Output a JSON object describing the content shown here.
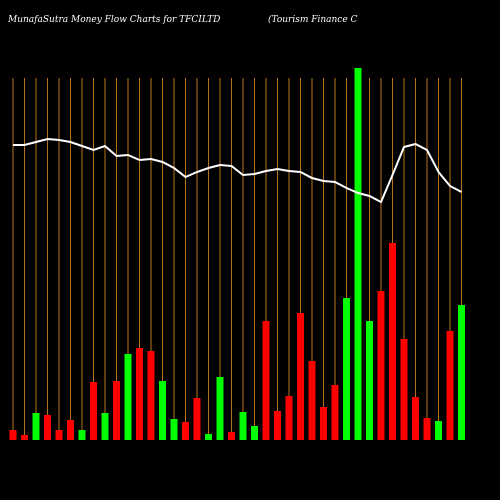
{
  "chart_data": {
    "type": "bar",
    "title": "MunafaSutra  Money Flow  Charts for TFCILTD",
    "subtitle": "(Tourism Finance   C",
    "categories": [
      null,
      null,
      null,
      null,
      null,
      null,
      null,
      null,
      null,
      null,
      null,
      null,
      null,
      null,
      null,
      null,
      null,
      null,
      null,
      null,
      null,
      null,
      null,
      null,
      null,
      null,
      null,
      null,
      null,
      null,
      null,
      null,
      null,
      null,
      null,
      null,
      null,
      null,
      null,
      null
    ],
    "values": [
      10,
      5,
      27,
      25,
      10,
      20,
      10,
      58,
      27,
      59,
      86,
      92,
      89,
      59,
      21,
      18,
      42,
      6,
      63,
      8,
      28,
      14,
      119,
      29,
      44,
      127,
      79,
      33,
      55,
      142,
      372,
      119,
      149,
      197,
      101,
      43,
      22,
      19,
      109,
      135
    ],
    "colors": [
      "#ff0000",
      "#ff0000",
      "#00ff00",
      "#ff0000",
      "#ff0000",
      "#ff0000",
      "#00ff00",
      "#ff0000",
      "#00ff00",
      "#ff0000",
      "#00ff00",
      "#ff0000",
      "#ff0000",
      "#00ff00",
      "#00ff00",
      "#ff0000",
      "#ff0000",
      "#00ff00",
      "#00ff00",
      "#ff0000",
      "#00ff00",
      "#00ff00",
      "#ff0000",
      "#ff0000",
      "#ff0000",
      "#ff0000",
      "#ff0000",
      "#ff0000",
      "#ff0000",
      "#00ff00",
      "#00ff00",
      "#00ff00",
      "#ff0000",
      "#ff0000",
      "#ff0000",
      "#ff0000",
      "#ff0000",
      "#00ff00",
      "#ff0000",
      "#00ff00"
    ],
    "line": {
      "color": "#ffffff",
      "values": [
        295,
        295,
        298,
        301,
        300,
        298,
        294,
        290,
        294,
        284,
        285,
        280,
        281,
        278,
        272,
        263,
        268,
        272,
        275,
        274,
        265,
        266,
        269,
        271,
        269,
        268,
        262,
        259,
        258,
        252,
        247,
        244,
        238,
        265,
        293,
        296,
        290,
        268,
        254,
        248
      ]
    },
    "ylim": [
      0,
      380
    ],
    "grid_color": "#b8741a"
  }
}
